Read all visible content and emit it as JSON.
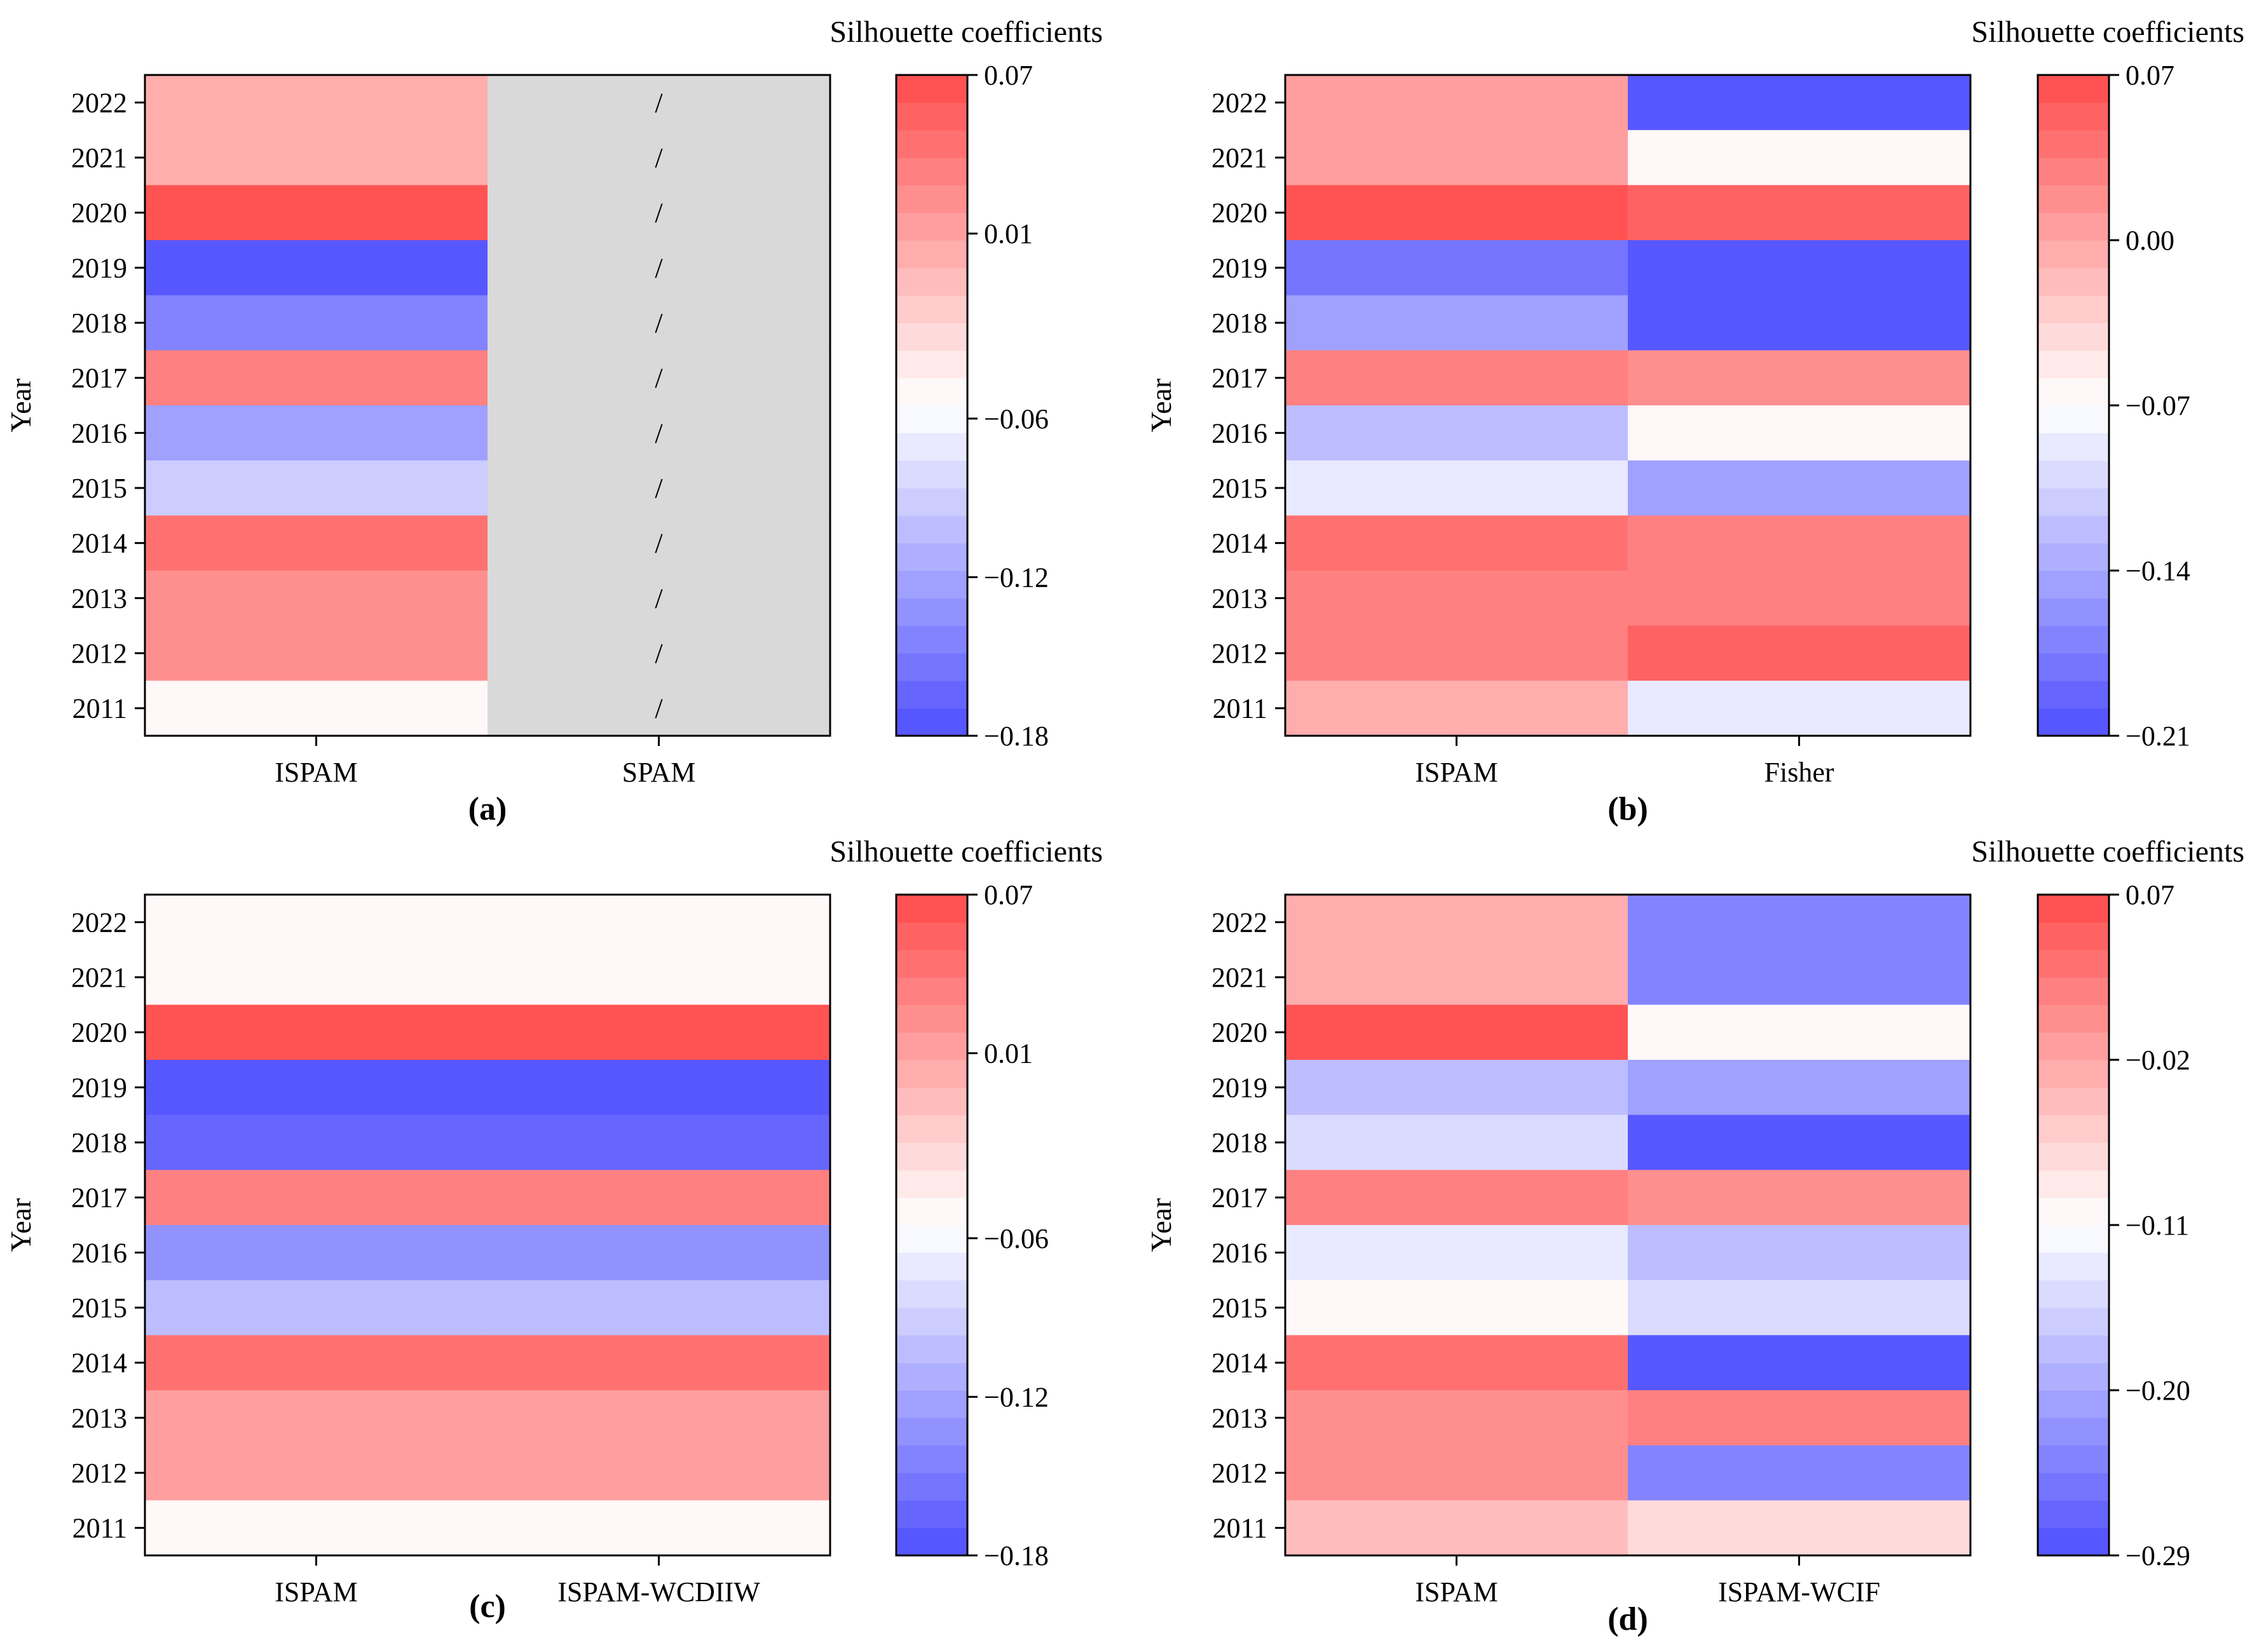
{
  "chart_data": [
    {
      "type": "heatmap",
      "panel_label": "(a)",
      "ylabel": "Year",
      "years": [
        "2022",
        "2021",
        "2020",
        "2019",
        "2018",
        "2017",
        "2016",
        "2015",
        "2014",
        "2013",
        "2012",
        "2011"
      ],
      "columns": [
        "ISPAM",
        "SPAM"
      ],
      "values": [
        [
          0.004,
          null
        ],
        [
          0.004,
          null
        ],
        [
          0.065,
          null
        ],
        [
          -0.175,
          null
        ],
        [
          -0.15,
          null
        ],
        [
          0.03,
          null
        ],
        [
          -0.125,
          null
        ],
        [
          -0.098,
          null
        ],
        [
          0.04,
          null
        ],
        [
          0.018,
          null
        ],
        [
          0.018,
          null
        ],
        [
          -0.055,
          null
        ]
      ],
      "missing_marker": "/",
      "missing_color": "#d9d9d9",
      "colorbar": {
        "title": "Silhouette coefficients",
        "vmin": -0.18,
        "vcenter": -0.06,
        "vmax": 0.07,
        "ticks": [
          0.07,
          0.01,
          -0.06,
          -0.12,
          -0.18
        ],
        "tick_labels": [
          "0.07",
          "0.01",
          "−0.06",
          "−0.12",
          "−0.18"
        ]
      }
    },
    {
      "type": "heatmap",
      "panel_label": "(b)",
      "ylabel": "Year",
      "years": [
        "2022",
        "2021",
        "2020",
        "2019",
        "2018",
        "2017",
        "2016",
        "2015",
        "2014",
        "2013",
        "2012",
        "2011"
      ],
      "columns": [
        "ISPAM",
        "Fisher"
      ],
      "values": [
        [
          0.01,
          -0.21
        ],
        [
          0.01,
          -0.07
        ],
        [
          0.065,
          0.048
        ],
        [
          -0.18,
          -0.21
        ],
        [
          -0.14,
          -0.21
        ],
        [
          0.032,
          0.015
        ],
        [
          -0.12,
          -0.07
        ],
        [
          -0.09,
          -0.15
        ],
        [
          0.042,
          0.03
        ],
        [
          0.025,
          0.025
        ],
        [
          0.025,
          0.05
        ],
        [
          -0.005,
          -0.09
        ]
      ],
      "colorbar": {
        "title": "Silhouette coefficients",
        "vmin": -0.21,
        "vcenter": -0.07,
        "vmax": 0.07,
        "ticks": [
          0.07,
          0.0,
          -0.07,
          -0.14,
          -0.21
        ],
        "tick_labels": [
          "0.07",
          "0.00",
          "−0.07",
          "−0.14",
          "−0.21"
        ]
      }
    },
    {
      "type": "heatmap",
      "panel_label": "(c)",
      "ylabel": "Year",
      "years": [
        "2022",
        "2021",
        "2020",
        "2019",
        "2018",
        "2017",
        "2016",
        "2015",
        "2014",
        "2013",
        "2012",
        "2011"
      ],
      "columns": [
        "ISPAM",
        "ISPAM-WCDIIW"
      ],
      "values": [
        [
          -0.05,
          -0.05
        ],
        [
          -0.05,
          -0.05
        ],
        [
          0.065,
          0.065
        ],
        [
          -0.175,
          -0.175
        ],
        [
          -0.16,
          -0.16
        ],
        [
          0.03,
          0.03
        ],
        [
          -0.135,
          -0.135
        ],
        [
          -0.105,
          -0.105
        ],
        [
          0.04,
          0.04
        ],
        [
          0.012,
          0.012
        ],
        [
          0.012,
          0.012
        ],
        [
          -0.06,
          -0.06
        ]
      ],
      "colorbar": {
        "title": "Silhouette coefficients",
        "vmin": -0.18,
        "vcenter": -0.06,
        "vmax": 0.07,
        "ticks": [
          0.07,
          0.01,
          -0.06,
          -0.12,
          -0.18
        ],
        "tick_labels": [
          "0.07",
          "0.01",
          "−0.06",
          "−0.12",
          "−0.18"
        ]
      }
    },
    {
      "type": "heatmap",
      "panel_label": "(d)",
      "ylabel": "Year",
      "years": [
        "2022",
        "2021",
        "2020",
        "2019",
        "2018",
        "2017",
        "2016",
        "2015",
        "2014",
        "2013",
        "2012",
        "2011"
      ],
      "columns": [
        "ISPAM",
        "ISPAM-WCIF"
      ],
      "values": [
        [
          -0.03,
          -0.24
        ],
        [
          -0.03,
          -0.24
        ],
        [
          0.065,
          -0.11
        ],
        [
          -0.18,
          -0.21
        ],
        [
          -0.15,
          -0.275
        ],
        [
          0.015,
          -0.005
        ],
        [
          -0.135,
          -0.175
        ],
        [
          -0.11,
          -0.15
        ],
        [
          0.03,
          -0.285
        ],
        [
          0.005,
          0.01
        ],
        [
          0.005,
          -0.23
        ],
        [
          -0.04,
          -0.08
        ]
      ],
      "colorbar": {
        "title": "Silhouette coefficients",
        "vmin": -0.29,
        "vcenter": -0.11,
        "vmax": 0.07,
        "ticks": [
          0.07,
          -0.02,
          -0.11,
          -0.2,
          -0.29
        ],
        "tick_labels": [
          "0.07",
          "−0.02",
          "−0.11",
          "−0.20",
          "−0.29"
        ]
      }
    }
  ]
}
